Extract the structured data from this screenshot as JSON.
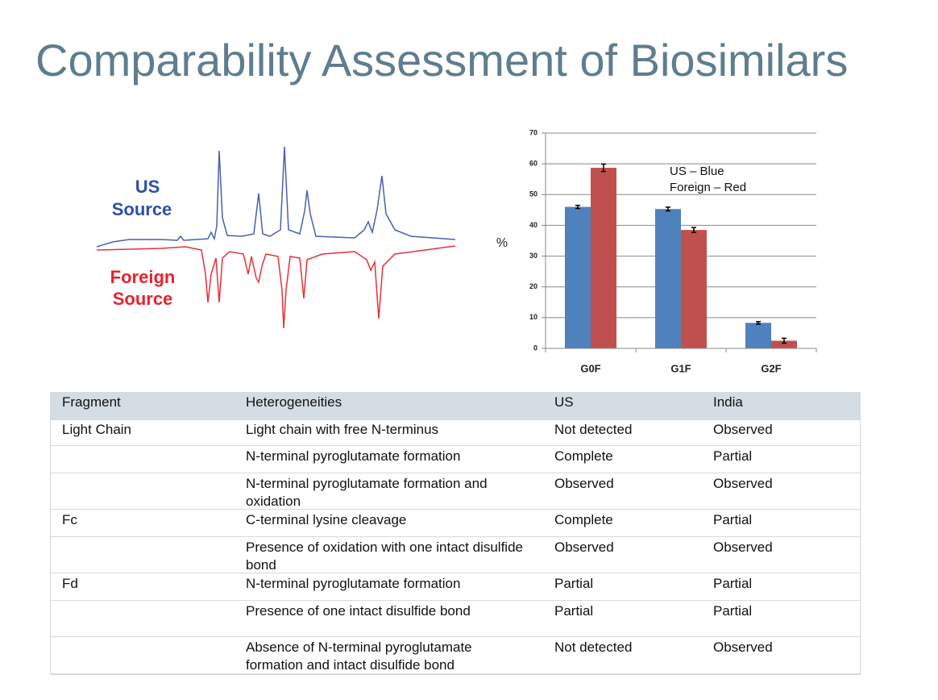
{
  "title": "Comparability Assessment of Biosimilars",
  "spectrum": {
    "top_label": [
      "US",
      "Source"
    ],
    "bottom_label": [
      "Foreign",
      "Source"
    ]
  },
  "chart_data": {
    "type": "bar",
    "categories": [
      "G0F",
      "G1F",
      "G2F"
    ],
    "series": [
      {
        "color": "#4f81bd",
        "values": [
          46,
          45.3,
          8.3
        ],
        "errors": [
          0.5,
          0.6,
          0.4
        ]
      },
      {
        "color": "#c0504d",
        "values": [
          58.7,
          38.5,
          2.5
        ],
        "errors": [
          1.2,
          0.8,
          0.8
        ]
      }
    ],
    "y_label": "%",
    "annotations": [
      "US – Blue",
      "Foreign – Red"
    ],
    "ylim": [
      0,
      70
    ],
    "yticks": [
      0,
      10,
      20,
      30,
      40,
      50,
      60,
      70
    ],
    "grid": true
  },
  "table": {
    "header": [
      "Fragment",
      "Heterogeneities",
      "US",
      "India"
    ],
    "rows": [
      [
        "Light Chain",
        "Light chain with free N-terminus",
        "Not detected",
        "Observed"
      ],
      [
        null,
        "N-terminal pyroglutamate formation",
        "Complete",
        "Partial"
      ],
      [
        null,
        "N-terminal pyroglutamate formation and oxidation",
        "Observed",
        "Observed"
      ],
      [
        "Fc",
        "C-terminal lysine cleavage",
        "Complete",
        "Partial"
      ],
      [
        null,
        "Presence of oxidation with one intact disulfide bond",
        "Observed",
        "Observed"
      ],
      [
        "Fd",
        "N-terminal pyroglutamate formation",
        "Partial",
        "Partial"
      ],
      [
        null,
        "Presence of one intact disulfide bond",
        "Partial",
        "Partial"
      ],
      [
        null,
        "Absence of N-terminal pyroglutamate formation and intact disulfide bond",
        "Not detected",
        "Observed"
      ]
    ]
  }
}
